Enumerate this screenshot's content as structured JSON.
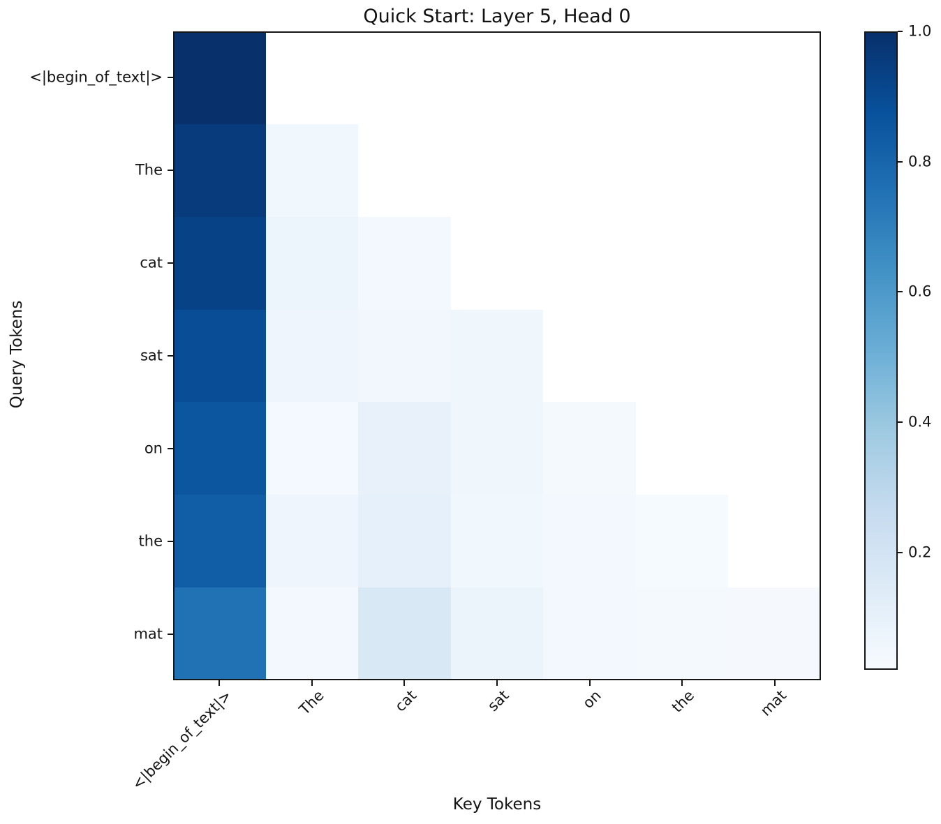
{
  "figure": {
    "title": "Quick Start: Layer 5, Head 0",
    "xlabel": "Key Tokens",
    "ylabel": "Query Tokens"
  },
  "chart_data": {
    "type": "heatmap",
    "title": "Quick Start: Layer 5, Head 0",
    "xlabel": "Key Tokens",
    "ylabel": "Query Tokens",
    "x_categories": [
      "<|begin_of_text|>",
      "The",
      "cat",
      "sat",
      "on",
      "the",
      "mat"
    ],
    "y_categories": [
      "<|begin_of_text|>",
      "The",
      "cat",
      "sat",
      "on",
      "the",
      "mat"
    ],
    "colormap": "Blues",
    "grid": false,
    "matrix": [
      [
        1.0,
        null,
        null,
        null,
        null,
        null,
        null
      ],
      [
        0.96,
        0.035,
        null,
        null,
        null,
        null,
        null
      ],
      [
        0.93,
        0.05,
        0.02,
        null,
        null,
        null,
        null
      ],
      [
        0.89,
        0.045,
        0.03,
        0.04,
        null,
        null,
        null
      ],
      [
        0.855,
        0.018,
        0.075,
        0.042,
        0.015,
        null,
        null
      ],
      [
        0.825,
        0.045,
        0.085,
        0.035,
        0.02,
        0.008,
        null
      ],
      [
        0.75,
        0.025,
        0.15,
        0.06,
        0.025,
        0.015,
        0.012
      ]
    ],
    "colorbar": {
      "position": "right",
      "vmin": 0.02,
      "vmax": 1.0,
      "ticks": [
        {
          "value": 1.0,
          "label": "1.0"
        },
        {
          "value": 0.8,
          "label": "0.8"
        },
        {
          "value": 0.6,
          "label": "0.6"
        },
        {
          "value": 0.4,
          "label": "0.4"
        },
        {
          "value": 0.2,
          "label": "0.2"
        }
      ]
    }
  },
  "colors": {
    "cmap_anchors": [
      "#f7fbff",
      "#deebf7",
      "#c6dbef",
      "#9ecae1",
      "#6baed6",
      "#4292c6",
      "#2171b5",
      "#08519c",
      "#08306b"
    ],
    "masked_cell": "#ffffff",
    "axis": "#151515",
    "background": "#ffffff"
  }
}
